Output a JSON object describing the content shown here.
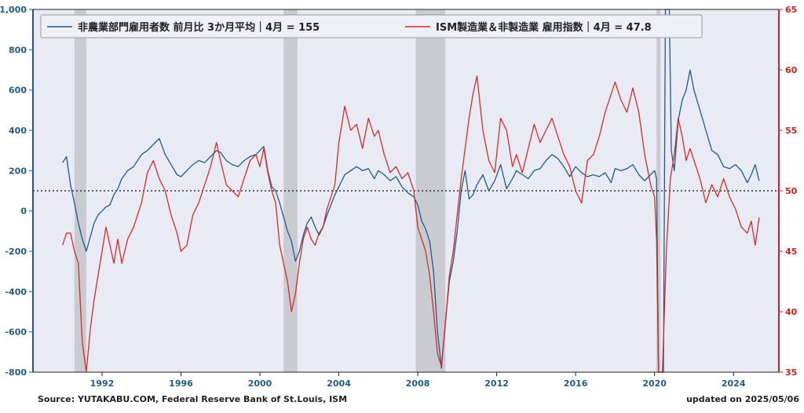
{
  "chart_data": {
    "type": "line",
    "x_axis": {
      "ticks": [
        "1992",
        "1996",
        "2000",
        "2004",
        "2008",
        "2012",
        "2016",
        "2020",
        "2024"
      ],
      "range": [
        1988.5,
        2026.3
      ]
    },
    "y_left": {
      "range": [
        -800,
        1000
      ],
      "ticks": [
        -800,
        -600,
        -400,
        -200,
        0,
        200,
        400,
        600,
        800,
        1000
      ]
    },
    "y_right": {
      "range": [
        35,
        65
      ],
      "ticks": [
        35,
        40,
        45,
        50,
        55,
        60,
        65
      ]
    },
    "reference_line": {
      "axis": "right",
      "value": 50,
      "style": "dotted"
    },
    "recessions": [
      [
        1990.6,
        1991.2
      ],
      [
        2001.2,
        2001.9
      ],
      [
        2007.9,
        2009.4
      ],
      [
        2020.1,
        2020.3
      ]
    ],
    "series": [
      {
        "name": "非農業部門雇用者数 前月比 3か月平均｜4月 = 155",
        "axis": "left",
        "color": "#1f5a8a",
        "points": [
          [
            1990.0,
            240
          ],
          [
            1990.2,
            270
          ],
          [
            1990.4,
            130
          ],
          [
            1990.6,
            40
          ],
          [
            1990.8,
            -60
          ],
          [
            1991.0,
            -140
          ],
          [
            1991.2,
            -200
          ],
          [
            1991.4,
            -130
          ],
          [
            1991.6,
            -60
          ],
          [
            1991.8,
            -20
          ],
          [
            1992.0,
            0
          ],
          [
            1992.2,
            20
          ],
          [
            1992.4,
            30
          ],
          [
            1992.6,
            80
          ],
          [
            1992.8,
            110
          ],
          [
            1993.0,
            160
          ],
          [
            1993.3,
            200
          ],
          [
            1993.6,
            220
          ],
          [
            1994.0,
            280
          ],
          [
            1994.3,
            300
          ],
          [
            1994.6,
            330
          ],
          [
            1994.9,
            360
          ],
          [
            1995.2,
            280
          ],
          [
            1995.5,
            230
          ],
          [
            1995.8,
            180
          ],
          [
            1996.0,
            170
          ],
          [
            1996.3,
            200
          ],
          [
            1996.6,
            230
          ],
          [
            1996.9,
            250
          ],
          [
            1997.2,
            240
          ],
          [
            1997.5,
            270
          ],
          [
            1997.8,
            300
          ],
          [
            1998.0,
            290
          ],
          [
            1998.3,
            250
          ],
          [
            1998.6,
            230
          ],
          [
            1998.9,
            220
          ],
          [
            1999.2,
            250
          ],
          [
            1999.5,
            270
          ],
          [
            1999.8,
            280
          ],
          [
            2000.0,
            300
          ],
          [
            2000.2,
            320
          ],
          [
            2000.4,
            200
          ],
          [
            2000.6,
            120
          ],
          [
            2000.8,
            100
          ],
          [
            2001.0,
            40
          ],
          [
            2001.2,
            -30
          ],
          [
            2001.4,
            -100
          ],
          [
            2001.6,
            -150
          ],
          [
            2001.8,
            -250
          ],
          [
            2002.0,
            -200
          ],
          [
            2002.2,
            -120
          ],
          [
            2002.4,
            -60
          ],
          [
            2002.6,
            -30
          ],
          [
            2002.8,
            -80
          ],
          [
            2003.0,
            -120
          ],
          [
            2003.2,
            -80
          ],
          [
            2003.4,
            -20
          ],
          [
            2003.6,
            30
          ],
          [
            2003.8,
            80
          ],
          [
            2004.0,
            120
          ],
          [
            2004.3,
            180
          ],
          [
            2004.6,
            200
          ],
          [
            2004.9,
            220
          ],
          [
            2005.2,
            200
          ],
          [
            2005.5,
            210
          ],
          [
            2005.8,
            160
          ],
          [
            2006.0,
            200
          ],
          [
            2006.3,
            180
          ],
          [
            2006.6,
            150
          ],
          [
            2006.9,
            170
          ],
          [
            2007.2,
            120
          ],
          [
            2007.5,
            90
          ],
          [
            2007.8,
            70
          ],
          [
            2008.0,
            30
          ],
          [
            2008.2,
            -50
          ],
          [
            2008.4,
            -90
          ],
          [
            2008.6,
            -150
          ],
          [
            2008.8,
            -300
          ],
          [
            2009.0,
            -600
          ],
          [
            2009.2,
            -780
          ],
          [
            2009.4,
            -550
          ],
          [
            2009.6,
            -350
          ],
          [
            2009.8,
            -250
          ],
          [
            2010.0,
            -100
          ],
          [
            2010.2,
            100
          ],
          [
            2010.4,
            200
          ],
          [
            2010.6,
            60
          ],
          [
            2010.8,
            80
          ],
          [
            2011.0,
            130
          ],
          [
            2011.3,
            180
          ],
          [
            2011.6,
            100
          ],
          [
            2011.9,
            150
          ],
          [
            2012.2,
            230
          ],
          [
            2012.5,
            110
          ],
          [
            2012.8,
            160
          ],
          [
            2013.0,
            200
          ],
          [
            2013.3,
            180
          ],
          [
            2013.6,
            160
          ],
          [
            2013.9,
            200
          ],
          [
            2014.2,
            210
          ],
          [
            2014.5,
            250
          ],
          [
            2014.8,
            280
          ],
          [
            2015.1,
            260
          ],
          [
            2015.4,
            220
          ],
          [
            2015.7,
            170
          ],
          [
            2016.0,
            220
          ],
          [
            2016.3,
            190
          ],
          [
            2016.6,
            170
          ],
          [
            2016.9,
            180
          ],
          [
            2017.2,
            170
          ],
          [
            2017.5,
            190
          ],
          [
            2017.8,
            140
          ],
          [
            2018.0,
            210
          ],
          [
            2018.3,
            200
          ],
          [
            2018.6,
            210
          ],
          [
            2018.9,
            230
          ],
          [
            2019.2,
            180
          ],
          [
            2019.5,
            150
          ],
          [
            2019.8,
            180
          ],
          [
            2020.0,
            200
          ],
          [
            2020.1,
            160
          ],
          [
            2020.2,
            -800
          ],
          [
            2020.45,
            -800
          ],
          [
            2020.55,
            1000
          ],
          [
            2020.75,
            1000
          ],
          [
            2020.85,
            300
          ],
          [
            2021.0,
            200
          ],
          [
            2021.2,
            450
          ],
          [
            2021.4,
            550
          ],
          [
            2021.6,
            600
          ],
          [
            2021.8,
            700
          ],
          [
            2022.0,
            600
          ],
          [
            2022.3,
            500
          ],
          [
            2022.6,
            400
          ],
          [
            2022.9,
            300
          ],
          [
            2023.2,
            280
          ],
          [
            2023.5,
            220
          ],
          [
            2023.8,
            210
          ],
          [
            2024.1,
            230
          ],
          [
            2024.4,
            200
          ],
          [
            2024.7,
            140
          ],
          [
            2024.9,
            180
          ],
          [
            2025.1,
            230
          ],
          [
            2025.3,
            150
          ]
        ]
      },
      {
        "name": "ISM製造業＆非製造業 雇用指数｜4月 = 47.8",
        "axis": "right",
        "color": "#d42a2a",
        "points": [
          [
            1990.0,
            45.5
          ],
          [
            1990.2,
            46.5
          ],
          [
            1990.4,
            46.5
          ],
          [
            1990.6,
            45.0
          ],
          [
            1990.8,
            44.0
          ],
          [
            1991.0,
            37.5
          ],
          [
            1991.2,
            35.0
          ],
          [
            1991.4,
            38.5
          ],
          [
            1991.6,
            41.0
          ],
          [
            1991.8,
            43.0
          ],
          [
            1992.0,
            45.0
          ],
          [
            1992.2,
            47.0
          ],
          [
            1992.4,
            45.5
          ],
          [
            1992.6,
            44.0
          ],
          [
            1992.8,
            46.0
          ],
          [
            1993.0,
            44.0
          ],
          [
            1993.3,
            46.0
          ],
          [
            1993.6,
            47.0
          ],
          [
            1994.0,
            49.0
          ],
          [
            1994.3,
            51.5
          ],
          [
            1994.6,
            52.5
          ],
          [
            1994.9,
            51.0
          ],
          [
            1995.2,
            50.0
          ],
          [
            1995.5,
            48.0
          ],
          [
            1995.8,
            46.5
          ],
          [
            1996.0,
            45.0
          ],
          [
            1996.3,
            45.5
          ],
          [
            1996.6,
            48.0
          ],
          [
            1996.9,
            49.0
          ],
          [
            1997.2,
            50.5
          ],
          [
            1997.5,
            52.0
          ],
          [
            1997.8,
            54.0
          ],
          [
            1998.0,
            52.5
          ],
          [
            1998.3,
            50.5
          ],
          [
            1998.6,
            50.0
          ],
          [
            1998.9,
            49.5
          ],
          [
            1999.2,
            51.0
          ],
          [
            1999.5,
            52.5
          ],
          [
            1999.8,
            53.0
          ],
          [
            2000.0,
            52.0
          ],
          [
            2000.2,
            53.5
          ],
          [
            2000.4,
            51.5
          ],
          [
            2000.6,
            50.0
          ],
          [
            2000.8,
            49.0
          ],
          [
            2001.0,
            45.5
          ],
          [
            2001.2,
            44.0
          ],
          [
            2001.4,
            42.5
          ],
          [
            2001.6,
            40.0
          ],
          [
            2001.8,
            41.5
          ],
          [
            2002.0,
            44.0
          ],
          [
            2002.2,
            46.0
          ],
          [
            2002.4,
            47.0
          ],
          [
            2002.6,
            46.0
          ],
          [
            2002.8,
            45.5
          ],
          [
            2003.0,
            46.5
          ],
          [
            2003.2,
            47.0
          ],
          [
            2003.4,
            48.5
          ],
          [
            2003.6,
            49.5
          ],
          [
            2003.8,
            50.5
          ],
          [
            2004.0,
            54.0
          ],
          [
            2004.3,
            57.0
          ],
          [
            2004.6,
            55.0
          ],
          [
            2004.9,
            55.5
          ],
          [
            2005.2,
            53.5
          ],
          [
            2005.5,
            56.0
          ],
          [
            2005.8,
            54.5
          ],
          [
            2006.0,
            55.0
          ],
          [
            2006.3,
            53.0
          ],
          [
            2006.6,
            51.5
          ],
          [
            2006.9,
            52.0
          ],
          [
            2007.2,
            51.0
          ],
          [
            2007.5,
            51.5
          ],
          [
            2007.8,
            50.0
          ],
          [
            2008.0,
            47.0
          ],
          [
            2008.2,
            46.0
          ],
          [
            2008.4,
            45.0
          ],
          [
            2008.6,
            43.0
          ],
          [
            2008.8,
            40.0
          ],
          [
            2009.0,
            36.5
          ],
          [
            2009.2,
            35.5
          ],
          [
            2009.4,
            39.0
          ],
          [
            2009.6,
            43.0
          ],
          [
            2009.8,
            45.0
          ],
          [
            2010.0,
            48.0
          ],
          [
            2010.2,
            51.0
          ],
          [
            2010.4,
            53.5
          ],
          [
            2010.6,
            56.0
          ],
          [
            2010.8,
            58.0
          ],
          [
            2011.0,
            59.5
          ],
          [
            2011.3,
            55.0
          ],
          [
            2011.6,
            52.5
          ],
          [
            2011.9,
            51.5
          ],
          [
            2012.2,
            56.0
          ],
          [
            2012.5,
            55.0
          ],
          [
            2012.8,
            52.0
          ],
          [
            2013.0,
            53.0
          ],
          [
            2013.3,
            51.5
          ],
          [
            2013.6,
            53.5
          ],
          [
            2013.9,
            55.5
          ],
          [
            2014.2,
            54.0
          ],
          [
            2014.5,
            55.0
          ],
          [
            2014.8,
            56.0
          ],
          [
            2015.1,
            54.5
          ],
          [
            2015.4,
            53.0
          ],
          [
            2015.7,
            52.0
          ],
          [
            2016.0,
            50.0
          ],
          [
            2016.3,
            49.0
          ],
          [
            2016.6,
            52.5
          ],
          [
            2016.9,
            53.0
          ],
          [
            2017.2,
            54.5
          ],
          [
            2017.5,
            56.5
          ],
          [
            2017.8,
            58.0
          ],
          [
            2018.0,
            59.0
          ],
          [
            2018.3,
            57.5
          ],
          [
            2018.6,
            56.5
          ],
          [
            2018.9,
            58.5
          ],
          [
            2019.2,
            56.5
          ],
          [
            2019.5,
            53.0
          ],
          [
            2019.8,
            50.5
          ],
          [
            2020.0,
            49.5
          ],
          [
            2020.1,
            46.0
          ],
          [
            2020.2,
            35.0
          ],
          [
            2020.4,
            35.0
          ],
          [
            2020.6,
            45.0
          ],
          [
            2020.8,
            51.0
          ],
          [
            2021.0,
            53.0
          ],
          [
            2021.2,
            56.0
          ],
          [
            2021.4,
            54.5
          ],
          [
            2021.6,
            52.5
          ],
          [
            2021.8,
            53.5
          ],
          [
            2022.0,
            52.5
          ],
          [
            2022.3,
            51.0
          ],
          [
            2022.6,
            49.0
          ],
          [
            2022.9,
            50.5
          ],
          [
            2023.2,
            49.5
          ],
          [
            2023.5,
            51.0
          ],
          [
            2023.8,
            49.5
          ],
          [
            2024.1,
            48.5
          ],
          [
            2024.4,
            47.0
          ],
          [
            2024.7,
            46.5
          ],
          [
            2024.9,
            47.5
          ],
          [
            2025.1,
            45.5
          ],
          [
            2025.3,
            47.8
          ]
        ]
      }
    ]
  },
  "footer": {
    "source": "Source: YUTAKABU.COM, Federal Reserve Bank of St.Louis, ISM",
    "updated": "updated on 2025/05/06"
  },
  "colors": {
    "plot_bg": "#e9ebf4",
    "recession": "#c9cbd1",
    "left_axis": "#1f5a8a",
    "right_axis": "#cc2222"
  }
}
